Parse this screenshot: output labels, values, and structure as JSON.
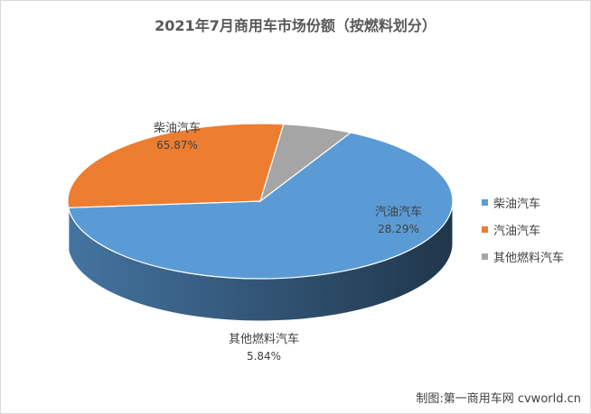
{
  "title": "2021年7月商用车市场份额（按燃料划分）",
  "credit": "制图:第一商用车网 cvworld.cn",
  "chart_data": {
    "type": "pie",
    "style": "3d",
    "title": "2021年7月商用车市场份额（按燃料划分）",
    "legend_position": "right",
    "slices": [
      {
        "name": "柴油汽车",
        "value": 65.87,
        "label": "65.87%",
        "color": "#5b9bd5"
      },
      {
        "name": "汽油汽车",
        "value": 28.29,
        "label": "28.29%",
        "color": "#ed7d31"
      },
      {
        "name": "其他燃料汽车",
        "value": 5.84,
        "label": "5.84%",
        "color": "#a5a5a5"
      }
    ]
  }
}
